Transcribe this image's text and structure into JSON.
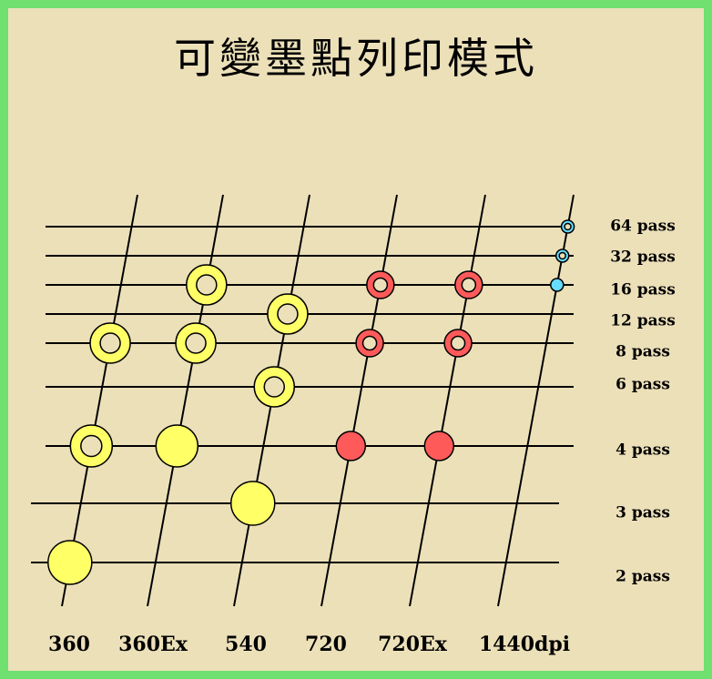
{
  "title": "可變墨點列印模式",
  "colors": {
    "background": "#ece0b9",
    "border": "#70e070",
    "line": "#000000",
    "yellow": "#ffff66",
    "red": "#ff5a5a",
    "cyan": "#66ddff"
  },
  "pass_labels": [
    "64 pass",
    "32 pass",
    "16 pass",
    "12 pass",
    "8 pass",
    "6 pass",
    "4 pass",
    "3 pass",
    "2 pass"
  ],
  "resolution_labels": [
    "360",
    "360Ex",
    "540",
    "720",
    "720Ex",
    "1440dpi"
  ],
  "markers": [
    {
      "resolution": "360",
      "pass": "2 pass",
      "color": "yellow",
      "style": "filled"
    },
    {
      "resolution": "360",
      "pass": "4 pass",
      "color": "yellow",
      "style": "ring"
    },
    {
      "resolution": "360",
      "pass": "8 pass",
      "color": "yellow",
      "style": "ring"
    },
    {
      "resolution": "360Ex",
      "pass": "4 pass",
      "color": "yellow",
      "style": "filled"
    },
    {
      "resolution": "360Ex",
      "pass": "8 pass",
      "color": "yellow",
      "style": "ring"
    },
    {
      "resolution": "360Ex",
      "pass": "16 pass",
      "color": "yellow",
      "style": "ring"
    },
    {
      "resolution": "540",
      "pass": "3 pass",
      "color": "yellow",
      "style": "filled"
    },
    {
      "resolution": "540",
      "pass": "6 pass",
      "color": "yellow",
      "style": "ring"
    },
    {
      "resolution": "540",
      "pass": "12 pass",
      "color": "yellow",
      "style": "ring"
    },
    {
      "resolution": "720",
      "pass": "4 pass",
      "color": "red",
      "style": "filled"
    },
    {
      "resolution": "720",
      "pass": "8 pass",
      "color": "red",
      "style": "cross"
    },
    {
      "resolution": "720",
      "pass": "16 pass",
      "color": "red",
      "style": "cross"
    },
    {
      "resolution": "720Ex",
      "pass": "4 pass",
      "color": "red",
      "style": "filled"
    },
    {
      "resolution": "720Ex",
      "pass": "8 pass",
      "color": "red",
      "style": "cross"
    },
    {
      "resolution": "720Ex",
      "pass": "16 pass",
      "color": "red",
      "style": "cross"
    },
    {
      "resolution": "1440dpi",
      "pass": "16 pass",
      "color": "cyan",
      "style": "filled"
    },
    {
      "resolution": "1440dpi",
      "pass": "32 pass",
      "color": "cyan",
      "style": "ring"
    },
    {
      "resolution": "1440dpi",
      "pass": "64 pass",
      "color": "cyan",
      "style": "ring"
    }
  ]
}
